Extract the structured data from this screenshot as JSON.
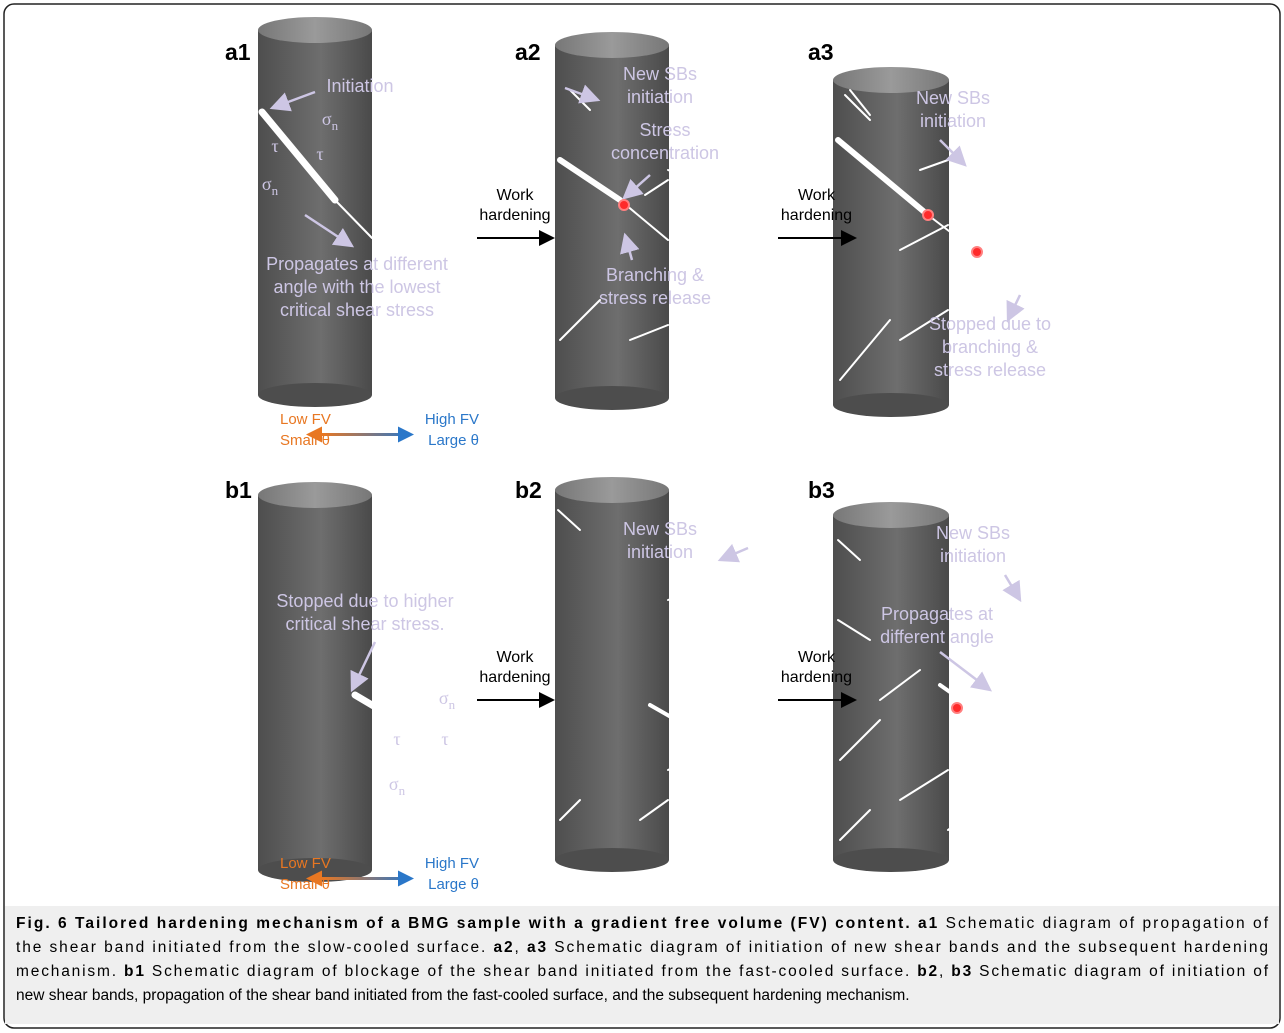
{
  "panels": [
    {
      "label": "a1",
      "annotations": [
        [
          "Initiation"
        ],
        [
          "Propagates at different",
          "angle with the lowest",
          "critical shear stress"
        ]
      ],
      "symbols": [
        {
          "symbol": "σ",
          "subscript": "n"
        },
        {
          "symbol": "τ"
        },
        {
          "symbol": "τ"
        },
        {
          "symbol": "σ",
          "subscript": "n"
        }
      ]
    },
    {
      "label": "a2",
      "annotations": [
        [
          "New SBs",
          "initiation"
        ],
        [
          "Stress",
          "concentration"
        ],
        [
          "Branching &",
          "stress release"
        ]
      ]
    },
    {
      "label": "a3",
      "annotations": [
        [
          "New SBs",
          "initiation"
        ],
        [
          "Stopped due to",
          "branching &",
          "stress release"
        ]
      ]
    },
    {
      "label": "b1",
      "annotations": [
        [
          "Stopped due to higher",
          "critical shear stress."
        ]
      ],
      "symbols": [
        {
          "symbol": "σ",
          "subscript": "n"
        },
        {
          "symbol": "τ"
        },
        {
          "symbol": "τ"
        },
        {
          "symbol": "σ",
          "subscript": "n"
        }
      ]
    },
    {
      "label": "b2",
      "annotations": [
        [
          "New SBs",
          "initiation"
        ]
      ]
    },
    {
      "label": "b3",
      "annotations": [
        [
          "New SBs",
          "initiation"
        ],
        [
          "Propagates at",
          "different angle"
        ]
      ]
    }
  ],
  "transitions": [
    [
      "Work",
      "hardening"
    ],
    [
      "Work",
      "hardening"
    ],
    [
      "Work",
      "hardening"
    ],
    [
      "Work",
      "hardening"
    ]
  ],
  "legends": [
    {
      "low": "Low FV",
      "small": "Small θ",
      "high": "High FV",
      "large": "Large θ"
    },
    {
      "low": "Low FV",
      "small": "Small θ",
      "high": "High FV",
      "large": "Large θ"
    }
  ],
  "caption": {
    "lines": [
      [
        {
          "text": "Fig. 6 Tailored hardening mechanism of a BMG sample with a gradient free volume (FV) content. a1",
          "bold": true
        },
        {
          "text": " Schematic diagram of propagation of"
        }
      ],
      [
        {
          "text": "the shear band initiated from the slow-cooled surface. "
        },
        {
          "text": "a2",
          "bold": true
        },
        {
          "text": ", "
        },
        {
          "text": "a3",
          "bold": true
        },
        {
          "text": " Schematic diagram of initiation of new shear bands and the subsequent hardening"
        }
      ],
      [
        {
          "text": "mechanism. "
        },
        {
          "text": "b1",
          "bold": true
        },
        {
          "text": " Schematic diagram of blockage of the shear band initiated from the fast-cooled surface. "
        },
        {
          "text": "b2",
          "bold": true
        },
        {
          "text": ", "
        },
        {
          "text": "b3",
          "bold": true
        },
        {
          "text": " Schematic diagram of initiation of"
        }
      ],
      [
        {
          "text": "new shear bands, propagation of the shear band initiated from the fast-cooled surface, and the subsequent hardening mechanism."
        }
      ]
    ]
  }
}
